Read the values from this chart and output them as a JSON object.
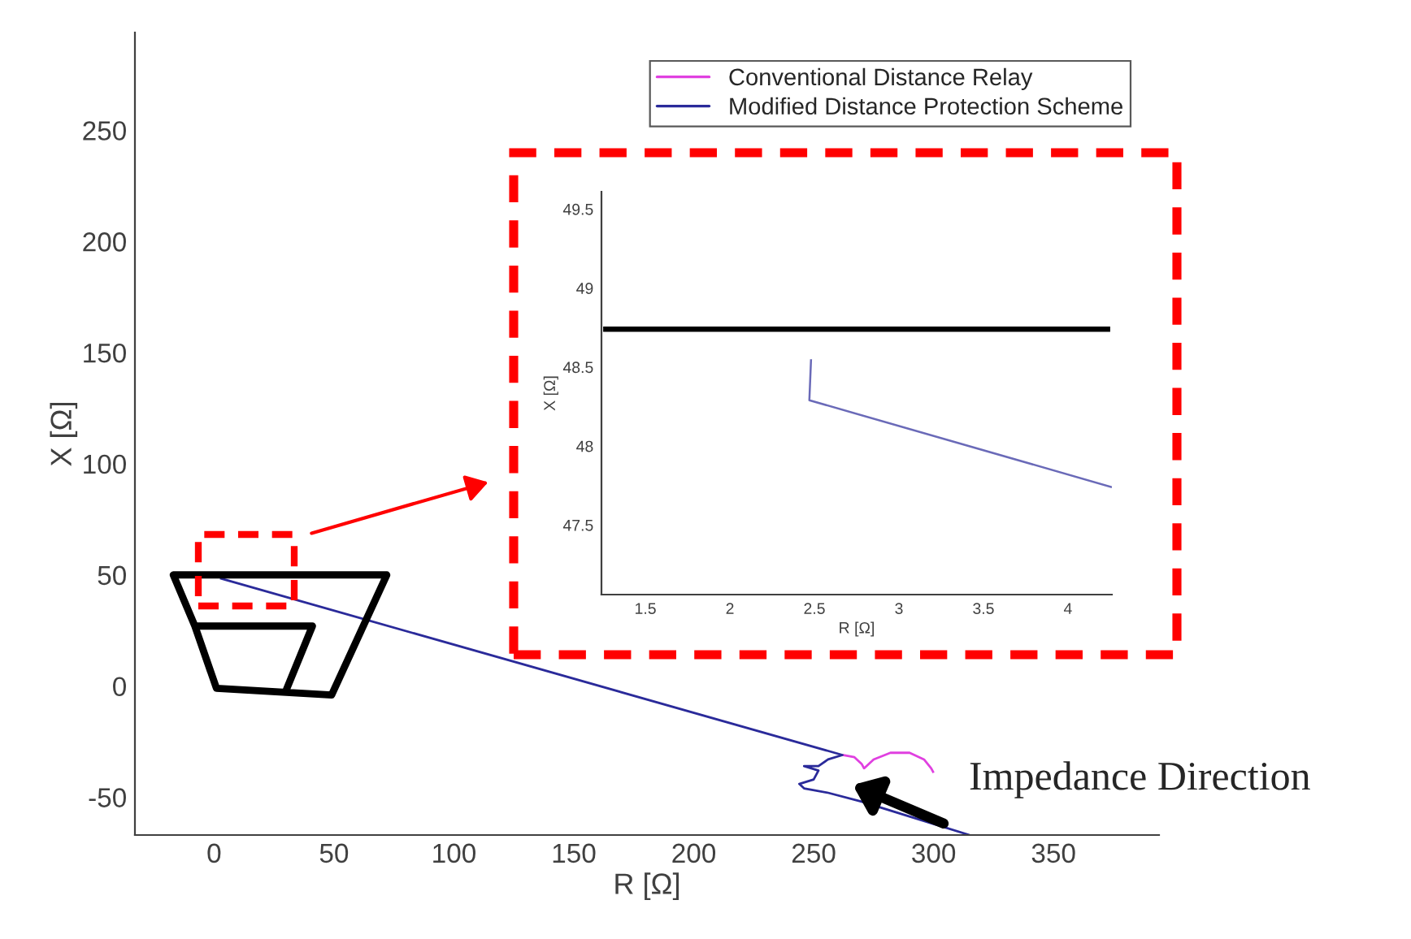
{
  "chart_data": [
    {
      "type": "line",
      "xlabel": "R [Ω]",
      "ylabel": "X [Ω]",
      "xlim": [
        -33,
        394
      ],
      "ylim": [
        -67,
        294
      ],
      "xticks": [
        0,
        50,
        100,
        150,
        200,
        250,
        300,
        350
      ],
      "yticks": [
        -50,
        0,
        50,
        100,
        150,
        200,
        250
      ],
      "legend": "top right",
      "series": [
        {
          "name": "Conventional Distance Relay",
          "color": "#e040e0",
          "x": [
            262,
            267,
            270,
            271,
            275,
            282,
            290,
            296,
            299,
            300
          ],
          "values": [
            -31,
            -32,
            -35,
            -37,
            -33,
            -30,
            -30,
            -33,
            -37,
            -39
          ]
        },
        {
          "name": "Modified Distance Protection Scheme",
          "color": "#2a2a9a",
          "x": [
            2.5,
            262,
            256,
            252,
            246,
            252,
            250,
            244,
            246,
            256,
            270,
            300,
            315
          ],
          "values": [
            48.5,
            -31,
            -33,
            -36,
            -36,
            -38,
            -42,
            -44,
            -46,
            -48,
            -52,
            -62,
            -67
          ]
        },
        {
          "color": "#000000",
          "x": [
            30,
            41,
            -8,
            -17,
            72,
            49,
            1,
            -8
          ],
          "values": [
            -2,
            27,
            27,
            50,
            50,
            -4,
            -1,
            27
          ]
        }
      ],
      "annotations": [
        "Impedance Direction"
      ]
    },
    {
      "type": "line",
      "xlabel": "R [Ω]",
      "ylabel": "X [Ω]",
      "xlim": [
        1.24,
        4.26
      ],
      "ylim": [
        47.06,
        49.61
      ],
      "xticks": [
        1.5,
        2,
        2.5,
        3,
        3.5,
        4
      ],
      "yticks": [
        47.5,
        48,
        48.5,
        49,
        49.5
      ],
      "series": [
        {
          "color": "#000000",
          "x": [
            1.25,
            4.25
          ],
          "values": [
            48.74,
            48.74
          ]
        },
        {
          "color": "#6a6ab8",
          "x": [
            2.48,
            2.47,
            4.26
          ],
          "values": [
            48.55,
            48.29,
            47.74
          ]
        }
      ]
    }
  ]
}
